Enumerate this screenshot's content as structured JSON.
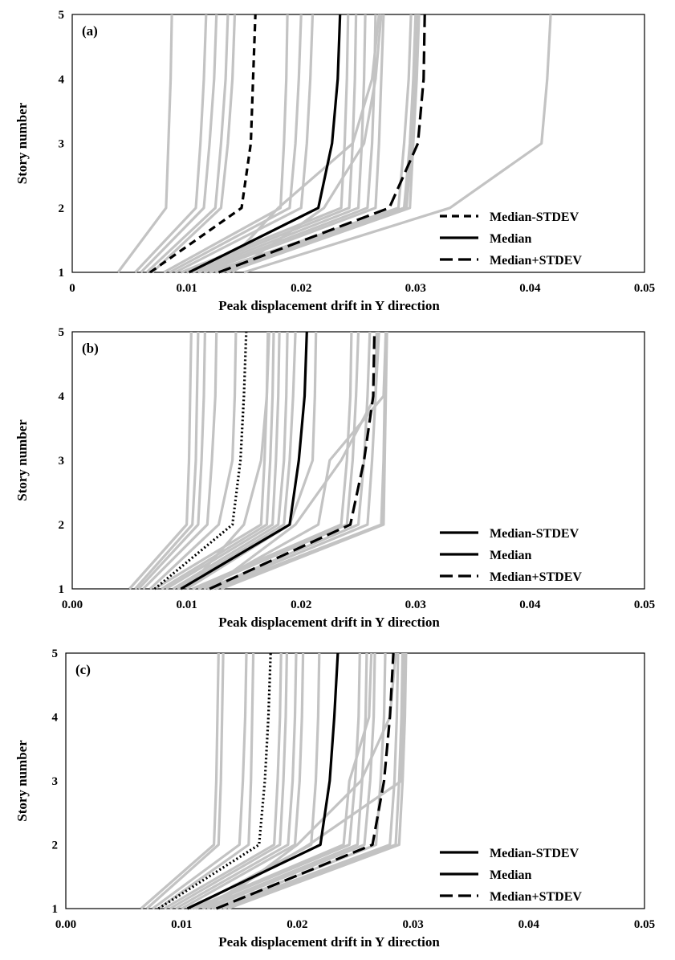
{
  "chart_data": [
    {
      "type": "line",
      "panel_label": "(a)",
      "xlabel": "Peak displacement  drift  in Y direction",
      "ylabel": "Story number",
      "xlim": [
        0,
        0.05
      ],
      "ylim": [
        1,
        5
      ],
      "x_tick_labels": [
        "0",
        "0.01",
        "0.02",
        "0.03",
        "0.04",
        "0.05"
      ],
      "y_tick_labels": [
        "1",
        "2",
        "3",
        "4",
        "5"
      ],
      "legend": [
        "Median-STDEV",
        "Median",
        "Median+STDEV"
      ],
      "legend_position": "bottom-right",
      "stories": [
        1,
        2,
        3,
        4,
        5
      ],
      "series": [
        {
          "name": "Median-STDEV",
          "style": "dashed",
          "values": [
            0.0068,
            0.0148,
            0.0156,
            0.0158,
            0.016
          ]
        },
        {
          "name": "Median",
          "style": "solid",
          "values": [
            0.0102,
            0.0215,
            0.0227,
            0.0232,
            0.0234
          ]
        },
        {
          "name": "Median+STDEV",
          "style": "longdash",
          "values": [
            0.0128,
            0.0277,
            0.0302,
            0.0307,
            0.0308
          ]
        }
      ],
      "records": [
        [
          0.004,
          0.0082,
          0.0084,
          0.0086,
          0.0087
        ],
        [
          0.0055,
          0.0108,
          0.0112,
          0.0115,
          0.0117
        ],
        [
          0.006,
          0.0115,
          0.012,
          0.0124,
          0.0126
        ],
        [
          0.0065,
          0.0125,
          0.013,
          0.0134,
          0.0136
        ],
        [
          0.007,
          0.013,
          0.0136,
          0.014,
          0.0142
        ],
        [
          0.008,
          0.0182,
          0.0185,
          0.0187,
          0.0188
        ],
        [
          0.0085,
          0.019,
          0.0195,
          0.0198,
          0.02
        ],
        [
          0.009,
          0.02,
          0.0205,
          0.0208,
          0.021
        ],
        [
          0.0095,
          0.0235,
          0.0238,
          0.024,
          0.0241
        ],
        [
          0.01,
          0.0242,
          0.0245,
          0.0247,
          0.0248
        ],
        [
          0.0105,
          0.025,
          0.0253,
          0.0255,
          0.0256
        ],
        [
          0.011,
          0.0258,
          0.0262,
          0.0264,
          0.0265
        ],
        [
          0.0115,
          0.0265,
          0.0268,
          0.027,
          0.0272
        ],
        [
          0.012,
          0.0285,
          0.029,
          0.0294,
          0.0296
        ],
        [
          0.0125,
          0.029,
          0.0295,
          0.0298,
          0.03
        ],
        [
          0.013,
          0.0292,
          0.0297,
          0.03,
          0.0302
        ],
        [
          0.0135,
          0.0295,
          0.0298,
          0.0301,
          0.0303
        ],
        [
          0.014,
          0.022,
          0.0255,
          0.0265,
          0.027
        ],
        [
          0.0128,
          0.018,
          0.0245,
          0.0262,
          0.0268
        ],
        [
          0.015,
          0.033,
          0.041,
          0.0415,
          0.0418
        ]
      ]
    },
    {
      "type": "line",
      "panel_label": "(b)",
      "xlabel": "Peak displacement  drift  in Y direction",
      "ylabel": "Story number",
      "xlim": [
        0,
        0.05
      ],
      "ylim": [
        1,
        5
      ],
      "x_tick_labels": [
        "0.00",
        "0.01",
        "0.02",
        "0.03",
        "0.04",
        "0.05"
      ],
      "y_tick_labels": [
        "1",
        "2",
        "3",
        "4",
        "5"
      ],
      "legend": [
        "Median-STDEV",
        "Median",
        "Median+STDEV"
      ],
      "legend_position": "bottom-right",
      "stories": [
        1,
        2,
        3,
        4,
        5
      ],
      "series": [
        {
          "name": "Median-STDEV",
          "style": "dotted",
          "values": [
            0.0072,
            0.014,
            0.0147,
            0.015,
            0.0152
          ]
        },
        {
          "name": "Median",
          "style": "solid",
          "values": [
            0.0095,
            0.019,
            0.0198,
            0.0203,
            0.0205
          ]
        },
        {
          "name": "Median+STDEV",
          "style": "longdash",
          "values": [
            0.012,
            0.0243,
            0.0255,
            0.0263,
            0.0264
          ]
        }
      ],
      "records": [
        [
          0.005,
          0.01,
          0.0102,
          0.0103,
          0.0104
        ],
        [
          0.0055,
          0.0105,
          0.0108,
          0.0109,
          0.011
        ],
        [
          0.0058,
          0.011,
          0.0113,
          0.0115,
          0.0116
        ],
        [
          0.0062,
          0.0118,
          0.0122,
          0.0125,
          0.0126
        ],
        [
          0.0068,
          0.0128,
          0.014,
          0.0142,
          0.0143
        ],
        [
          0.0072,
          0.0165,
          0.0168,
          0.017,
          0.0171
        ],
        [
          0.0078,
          0.017,
          0.0173,
          0.0175,
          0.0176
        ],
        [
          0.0082,
          0.0175,
          0.0178,
          0.018,
          0.0181
        ],
        [
          0.0088,
          0.018,
          0.0185,
          0.0187,
          0.0188
        ],
        [
          0.0092,
          0.0185,
          0.019,
          0.0193,
          0.0195
        ],
        [
          0.01,
          0.019,
          0.021,
          0.0212,
          0.0213
        ],
        [
          0.0105,
          0.0235,
          0.024,
          0.0243,
          0.0244
        ],
        [
          0.011,
          0.024,
          0.0245,
          0.0248,
          0.025
        ],
        [
          0.0118,
          0.025,
          0.0255,
          0.0258,
          0.026
        ],
        [
          0.0122,
          0.0258,
          0.0262,
          0.0265,
          0.0266
        ],
        [
          0.0125,
          0.027,
          0.0272,
          0.0273,
          0.0274
        ],
        [
          0.013,
          0.0272,
          0.0273,
          0.0274,
          0.0275
        ],
        [
          0.012,
          0.0195,
          0.0235,
          0.0265,
          0.0268
        ],
        [
          0.0115,
          0.0215,
          0.0225,
          0.0272,
          0.0274
        ],
        [
          0.01,
          0.015,
          0.0165,
          0.017,
          0.0172
        ]
      ]
    },
    {
      "type": "line",
      "panel_label": "(c)",
      "xlabel": "Peak displacement  drift  in Y direction",
      "ylabel": "Story number",
      "xlim": [
        0,
        0.05
      ],
      "ylim": [
        1,
        5
      ],
      "x_tick_labels": [
        "0.00",
        "0.01",
        "0.02",
        "0.03",
        "0.04",
        "0.05"
      ],
      "y_tick_labels": [
        "1",
        "2",
        "3",
        "4",
        "5"
      ],
      "legend": [
        "Median-STDEV",
        "Median",
        "Median+STDEV"
      ],
      "legend_position": "bottom-right",
      "stories": [
        1,
        2,
        3,
        4,
        5
      ],
      "series": [
        {
          "name": "Median-STDEV",
          "style": "dotted",
          "values": [
            0.008,
            0.0167,
            0.0172,
            0.0175,
            0.0177
          ]
        },
        {
          "name": "Median",
          "style": "solid",
          "values": [
            0.0105,
            0.022,
            0.0228,
            0.0232,
            0.0235
          ]
        },
        {
          "name": "Median+STDEV",
          "style": "longdash",
          "values": [
            0.013,
            0.0265,
            0.0275,
            0.028,
            0.0283
          ]
        }
      ],
      "records": [
        [
          0.0065,
          0.0128,
          0.013,
          0.0131,
          0.0132
        ],
        [
          0.007,
          0.0132,
          0.0134,
          0.0135,
          0.0136
        ],
        [
          0.0075,
          0.015,
          0.0153,
          0.0155,
          0.0156
        ],
        [
          0.008,
          0.0158,
          0.016,
          0.0161,
          0.0162
        ],
        [
          0.0085,
          0.018,
          0.0183,
          0.0185,
          0.0186
        ],
        [
          0.009,
          0.0185,
          0.0188,
          0.019,
          0.0191
        ],
        [
          0.0095,
          0.0192,
          0.0196,
          0.0198,
          0.0199
        ],
        [
          0.01,
          0.0198,
          0.0202,
          0.0204,
          0.0205
        ],
        [
          0.0108,
          0.0212,
          0.0216,
          0.0218,
          0.0219
        ],
        [
          0.0112,
          0.0245,
          0.025,
          0.0253,
          0.0254
        ],
        [
          0.0118,
          0.0252,
          0.0256,
          0.0259,
          0.026
        ],
        [
          0.0122,
          0.0258,
          0.0263,
          0.0266,
          0.0267
        ],
        [
          0.0128,
          0.0268,
          0.0272,
          0.0275,
          0.0276
        ],
        [
          0.0132,
          0.028,
          0.0284,
          0.0286,
          0.0287
        ],
        [
          0.0136,
          0.0285,
          0.0288,
          0.029,
          0.0291
        ],
        [
          0.014,
          0.0288,
          0.0291,
          0.0293,
          0.0294
        ],
        [
          0.0126,
          0.02,
          0.0255,
          0.028,
          0.0285
        ],
        [
          0.0118,
          0.021,
          0.029,
          0.0292,
          0.0293
        ],
        [
          0.011,
          0.024,
          0.0245,
          0.0262,
          0.0264
        ]
      ]
    }
  ]
}
